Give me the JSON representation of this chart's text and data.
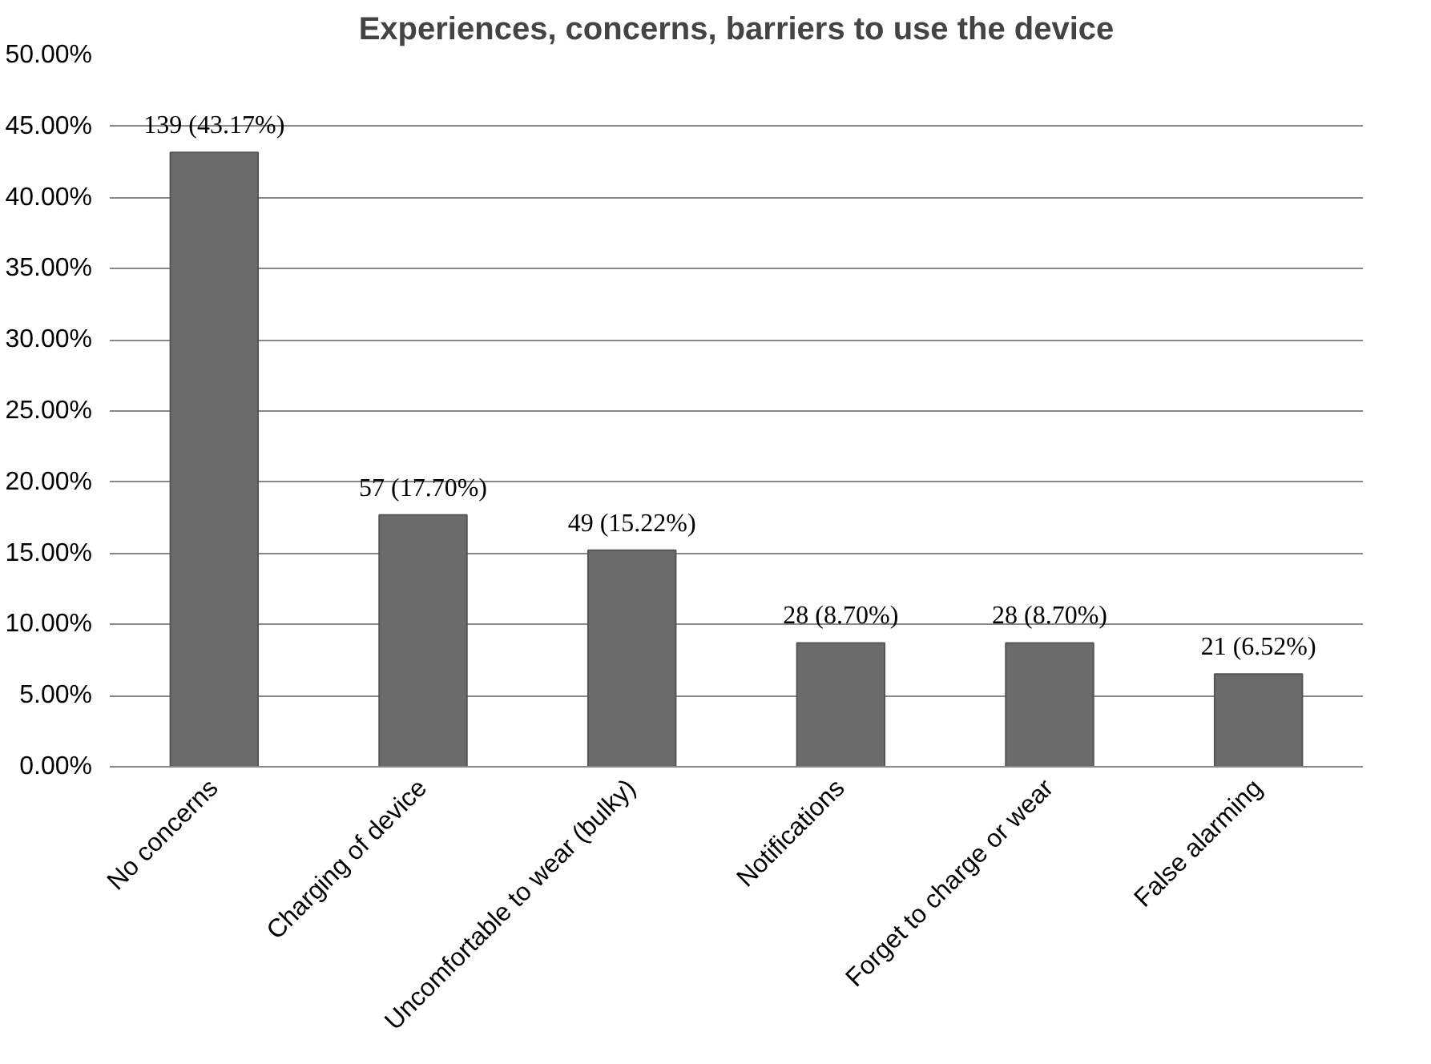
{
  "chart_data": {
    "type": "bar",
    "title": "Experiences, concerns, barriers to use the device",
    "categories": [
      "No concerns",
      "Charging of device",
      "Uncomfortable to wear (bulky)",
      "Notifications",
      "Forget to charge or wear",
      "False alarming"
    ],
    "values": [
      43.17,
      17.7,
      15.22,
      8.7,
      8.7,
      6.52
    ],
    "value_labels": [
      "139 (43.17%)",
      "57 (17.70%)",
      "49 (15.22%)",
      "28 (8.70%)",
      "28 (8.70%)",
      "21 (6.52%)"
    ],
    "color": "#6b6b6b",
    "ylim": [
      0,
      50
    ],
    "yticks": [
      {
        "value": 0,
        "label": "0.00%"
      },
      {
        "value": 5,
        "label": "5.00%"
      },
      {
        "value": 10,
        "label": "10.00%"
      },
      {
        "value": 15,
        "label": "15.00%"
      },
      {
        "value": 20,
        "label": "20.00%"
      },
      {
        "value": 25,
        "label": "25.00%"
      },
      {
        "value": 30,
        "label": "30.00%"
      },
      {
        "value": 35,
        "label": "35.00%"
      },
      {
        "value": 40,
        "label": "40.00%"
      },
      {
        "value": 45,
        "label": "45.00%"
      },
      {
        "value": 50,
        "label": "50.00%"
      }
    ],
    "grid": "y"
  }
}
